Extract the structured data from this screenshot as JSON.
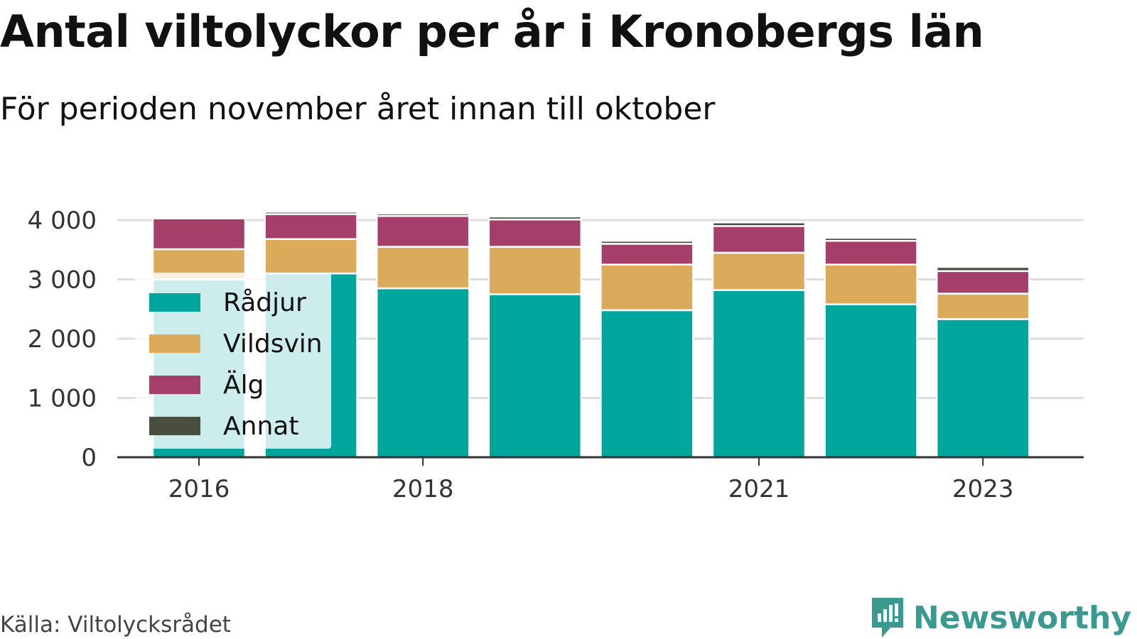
{
  "title": "Antal viltolyckor per år i Kronobergs län",
  "subtitle": "För perioden november året innan till oktober",
  "source": "Källa: Viltolycksrådet",
  "brand": "Newsworthy",
  "colors": {
    "Rådjur": "#00a59b",
    "Vildsvin": "#dbaa5a",
    "Älg": "#a33f68",
    "Annat": "#4a4e3f"
  },
  "chart_data": {
    "type": "bar",
    "stacked": true,
    "categories": [
      "2016",
      "2017",
      "2018",
      "2019",
      "2020",
      "2021",
      "2022",
      "2023"
    ],
    "tick_labels": [
      "2016",
      "",
      "2018",
      "",
      "",
      "2021",
      "",
      "2023"
    ],
    "series": [
      {
        "name": "Rådjur",
        "values": [
          3000,
          3100,
          2850,
          2750,
          2480,
          2820,
          2580,
          2330
        ]
      },
      {
        "name": "Vildsvin",
        "values": [
          510,
          580,
          700,
          800,
          770,
          630,
          670,
          430
        ]
      },
      {
        "name": "Älg",
        "values": [
          520,
          420,
          520,
          460,
          350,
          450,
          400,
          380
        ]
      },
      {
        "name": "Annat",
        "values": [
          30,
          40,
          40,
          50,
          50,
          60,
          50,
          70
        ]
      }
    ],
    "y_ticks": [
      0,
      1000,
      2000,
      3000,
      4000
    ],
    "y_tick_labels": [
      "0",
      "1 000",
      "2 000",
      "3 000",
      "4 000"
    ],
    "ylim": [
      0,
      4300
    ],
    "grid": true,
    "legend_position": "bottom-left"
  }
}
